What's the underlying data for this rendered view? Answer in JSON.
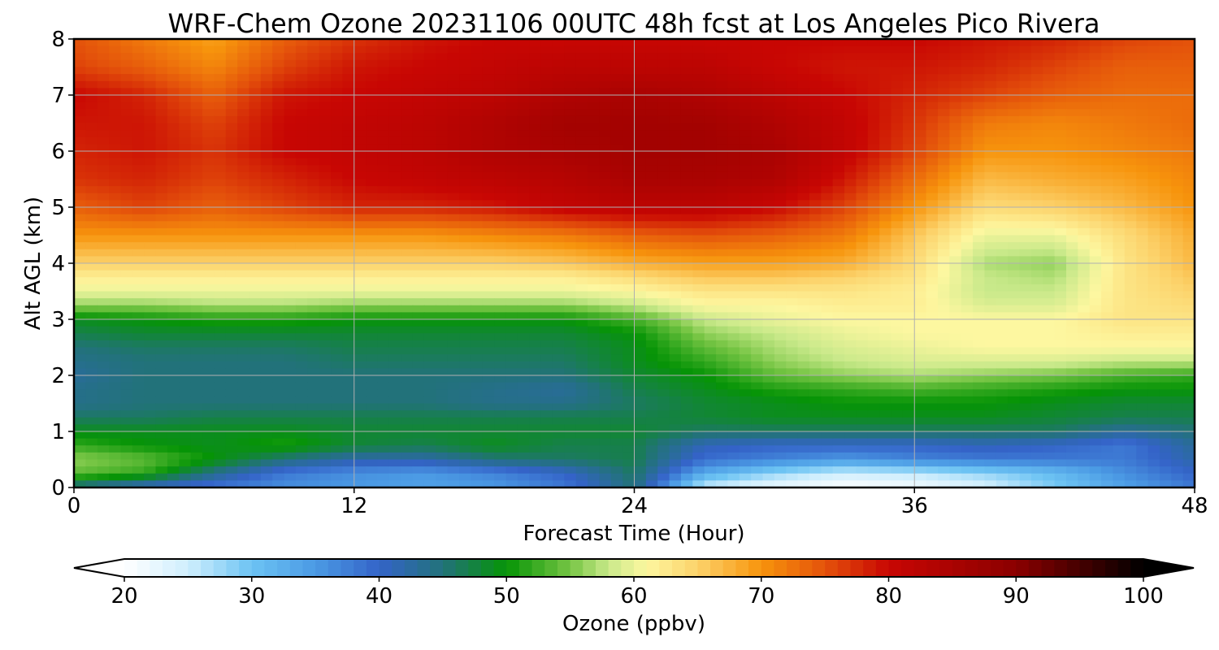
{
  "chart_data": {
    "type": "heatmap",
    "title": "WRF-Chem Ozone  20231106 00UTC 48h fcst at Los Angeles Pico Rivera",
    "xlabel": "Forecast Time (Hour)",
    "ylabel": "Alt AGL (km)",
    "xlim": [
      0,
      48
    ],
    "ylim": [
      0,
      8
    ],
    "x_ticks": [
      "0",
      "12",
      "24",
      "36",
      "48"
    ],
    "y_ticks": [
      "0",
      "1",
      "2",
      "3",
      "4",
      "5",
      "6",
      "7",
      "8"
    ],
    "grid": true,
    "x_hours": [
      0,
      3,
      6,
      9,
      12,
      15,
      18,
      21,
      24,
      27,
      30,
      33,
      36,
      39,
      42,
      45,
      48
    ],
    "y_km": [
      0,
      0.25,
      0.5,
      0.75,
      1,
      1.25,
      1.5,
      1.75,
      2,
      2.25,
      2.5,
      2.75,
      3,
      3.25,
      3.5,
      3.75,
      4,
      4.5,
      5,
      5.5,
      6,
      6.5,
      7,
      7.5,
      8
    ],
    "values_ppbv": [
      [
        44,
        40,
        38,
        36,
        35,
        34,
        35,
        38,
        45,
        25,
        22,
        20,
        21,
        24,
        29,
        34,
        38
      ],
      [
        54,
        52,
        44,
        38,
        36,
        35,
        37,
        40,
        46,
        33,
        28,
        25,
        26,
        28,
        31,
        36,
        40
      ],
      [
        56,
        54,
        50,
        45,
        42,
        42,
        45,
        46,
        47,
        39,
        37,
        35,
        37,
        38,
        38,
        38,
        42
      ],
      [
        52,
        50,
        49,
        51,
        48,
        47,
        49,
        47,
        47,
        41,
        40,
        40,
        40,
        41,
        40,
        38,
        43
      ],
      [
        49,
        49,
        49,
        49,
        48,
        48,
        48,
        48,
        48,
        46,
        46,
        46,
        46,
        46,
        46,
        43,
        45
      ],
      [
        46,
        46,
        47,
        47,
        47,
        47,
        47,
        47,
        47,
        48,
        49,
        49,
        49,
        49,
        48,
        47,
        47
      ],
      [
        44,
        45,
        45,
        45,
        45,
        45,
        44,
        44,
        46,
        48,
        49,
        50,
        50,
        50,
        49,
        48,
        48
      ],
      [
        44,
        45,
        45,
        45,
        45,
        45,
        44,
        43,
        47,
        49,
        51,
        52,
        53,
        52,
        51,
        50,
        50
      ],
      [
        43,
        45,
        45,
        45,
        45,
        45,
        45,
        45,
        48,
        50,
        54,
        56,
        57,
        56,
        55,
        53,
        52
      ],
      [
        44,
        45,
        45,
        45,
        46,
        46,
        46,
        46,
        49,
        52,
        56,
        58,
        59,
        59,
        59,
        58,
        58
      ],
      [
        45,
        46,
        46,
        46,
        47,
        47,
        47,
        47,
        49,
        54,
        57,
        59,
        60,
        61,
        61,
        61,
        61
      ],
      [
        47,
        48,
        48,
        48,
        48,
        48,
        48,
        48,
        50,
        56,
        58,
        60,
        61,
        61,
        61,
        62,
        62
      ],
      [
        49,
        50,
        51,
        51,
        50,
        50,
        50,
        50,
        53,
        58,
        60,
        61,
        61,
        61,
        61,
        63,
        63
      ],
      [
        56,
        56,
        57,
        57,
        56,
        56,
        56,
        56,
        58,
        61,
        61,
        62,
        62,
        59,
        59,
        63,
        64
      ],
      [
        60,
        60,
        60,
        60,
        60,
        60,
        60,
        60,
        61,
        63,
        63,
        63,
        62,
        58,
        58,
        63,
        65
      ],
      [
        62,
        62,
        62,
        62,
        62,
        62,
        62,
        62,
        64,
        66,
        66,
        65,
        63,
        58,
        57,
        63,
        66
      ],
      [
        65,
        65,
        65,
        65,
        65,
        65,
        65,
        66,
        68,
        69,
        69,
        68,
        64,
        57,
        56,
        63,
        67
      ],
      [
        70,
        70,
        70,
        70,
        70,
        70,
        71,
        72,
        74,
        75,
        74,
        72,
        66,
        60,
        60,
        64,
        68
      ],
      [
        74,
        76,
        74,
        76,
        78,
        78,
        79,
        81,
        82,
        82,
        80,
        76,
        70,
        64,
        65,
        67,
        70
      ],
      [
        77,
        78,
        76,
        78,
        80,
        81,
        82,
        83,
        85,
        85,
        84,
        79,
        73,
        67,
        68,
        69,
        71
      ],
      [
        78,
        79,
        77,
        80,
        81,
        82,
        84,
        85,
        86,
        86,
        85,
        81,
        76,
        70,
        70,
        71,
        72
      ],
      [
        79,
        79,
        76,
        80,
        81,
        82,
        84,
        86,
        86,
        86,
        84,
        81,
        77,
        72,
        71,
        72,
        73
      ],
      [
        80,
        78,
        74,
        79,
        80,
        81,
        82,
        84,
        85,
        84,
        82,
        80,
        78,
        76,
        74,
        73,
        73
      ],
      [
        76,
        74,
        71,
        76,
        79,
        80,
        81,
        82,
        82,
        82,
        80,
        79,
        79,
        78,
        76,
        74,
        74
      ],
      [
        75,
        72,
        69,
        74,
        77,
        79,
        80,
        80,
        80,
        80,
        80,
        80,
        80,
        79,
        78,
        76,
        75
      ]
    ],
    "colorbar": {
      "label": "Ozone  (ppbv)",
      "min": 20,
      "max": 100,
      "ticks": [
        "20",
        "30",
        "40",
        "50",
        "60",
        "70",
        "80",
        "90",
        "100"
      ],
      "extend": "both",
      "stops": [
        {
          "v": 20,
          "c": "#ffffff"
        },
        {
          "v": 25,
          "c": "#cfeefd"
        },
        {
          "v": 30,
          "c": "#6cc3f3"
        },
        {
          "v": 35,
          "c": "#4b9ae4"
        },
        {
          "v": 40,
          "c": "#3463c8"
        },
        {
          "v": 45,
          "c": "#22727a"
        },
        {
          "v": 50,
          "c": "#069406"
        },
        {
          "v": 55,
          "c": "#76c544"
        },
        {
          "v": 58,
          "c": "#c9e98a"
        },
        {
          "v": 61,
          "c": "#fdf7a0"
        },
        {
          "v": 65,
          "c": "#fcd26a"
        },
        {
          "v": 70,
          "c": "#f7940c"
        },
        {
          "v": 75,
          "c": "#e4520b"
        },
        {
          "v": 80,
          "c": "#c80603"
        },
        {
          "v": 90,
          "c": "#8b0000"
        },
        {
          "v": 100,
          "c": "#000000"
        }
      ]
    }
  }
}
